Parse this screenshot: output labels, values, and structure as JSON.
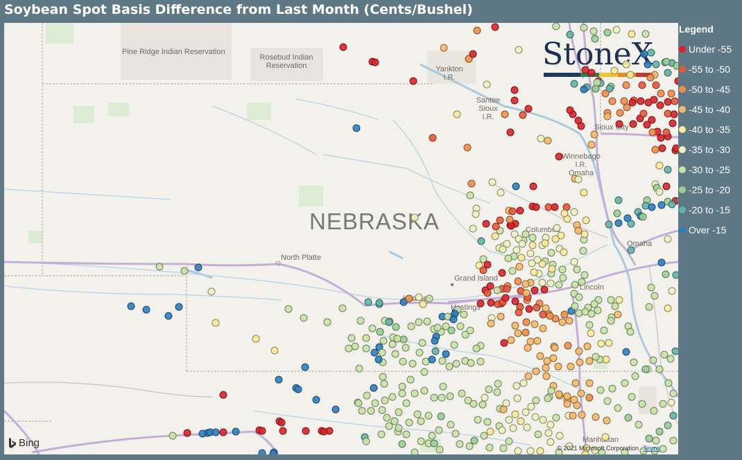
{
  "title": "Soybean Spot Basis Difference from Last Month (Cents/Bushel)",
  "map": {
    "state_label": "NEBRASKA",
    "places": [
      {
        "name": "Pine Ridge Indian Reservation"
      },
      {
        "name": "Rosebud Indian\nReservation"
      },
      {
        "name": "Yankton\nI.R."
      },
      {
        "name": "Santee\nSioux\nI.R."
      },
      {
        "name": "Sioux City"
      },
      {
        "name": "Winnebago\nI.R."
      },
      {
        "name": "Omaha"
      },
      {
        "name": "Columbus"
      },
      {
        "name": "Omaha"
      },
      {
        "name": "North Platte"
      },
      {
        "name": "Grand Island"
      },
      {
        "name": "Kearney"
      },
      {
        "name": "Hastings"
      },
      {
        "name": "Lincoln"
      },
      {
        "name": "Manhattan"
      }
    ],
    "provider": "Bing",
    "copyright": "© 2021 Microsoft Corporation",
    "terms": "Terms"
  },
  "logo": {
    "text": "StoneX",
    "bar_colors": [
      "#1f3a5f",
      "#1f3a5f",
      "#2e7d4f",
      "#f2c230",
      "#e88a1a",
      "#c0392b"
    ]
  },
  "legend": {
    "title": "Legend",
    "items": [
      {
        "label": "Under -55",
        "color": "#d9232a"
      },
      {
        "label": "-55 to -50",
        "color": "#e8583a"
      },
      {
        "label": "-50 to -45",
        "color": "#f28d4b"
      },
      {
        "label": "-45 to -40",
        "color": "#f6b86a"
      },
      {
        "label": "-40 to -35",
        "color": "#faea9a"
      },
      {
        "label": "-35 to -30",
        "color": "#eef3bf"
      },
      {
        "label": "-30 to -25",
        "color": "#c8e2a6"
      },
      {
        "label": "-25 to -20",
        "color": "#98cf95"
      },
      {
        "label": "-20 to -15",
        "color": "#61b3a8"
      },
      {
        "label": "Over -15",
        "color": "#2e7fc0"
      }
    ]
  }
}
